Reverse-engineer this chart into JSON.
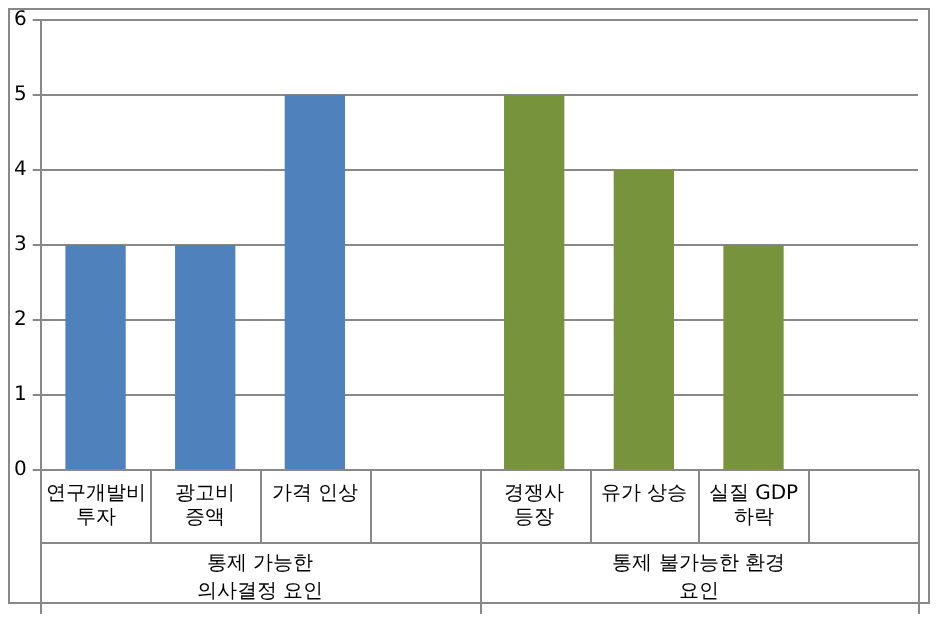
{
  "chart_data": {
    "type": "bar",
    "categories": [
      "연구개발비 투자",
      "광고비 증액",
      "가격 인상",
      null,
      "경쟁사 등장",
      "유가 상승",
      "실질 GDP 하락",
      null
    ],
    "values": [
      3,
      3,
      5,
      null,
      5,
      4,
      3,
      null
    ],
    "colors": [
      "#4f81bd",
      "#4f81bd",
      "#4f81bd",
      "#4f81bd",
      "#77933c",
      "#77933c",
      "#77933c",
      "#77933c"
    ],
    "ylim": [
      0,
      6
    ],
    "yticks": [
      0,
      1,
      2,
      3,
      4,
      5,
      6
    ],
    "grid": "y",
    "legend": false,
    "annotations": [
      "통제 가능한 의사결정 요인",
      "통제 불가능한 환경 요인"
    ]
  }
}
